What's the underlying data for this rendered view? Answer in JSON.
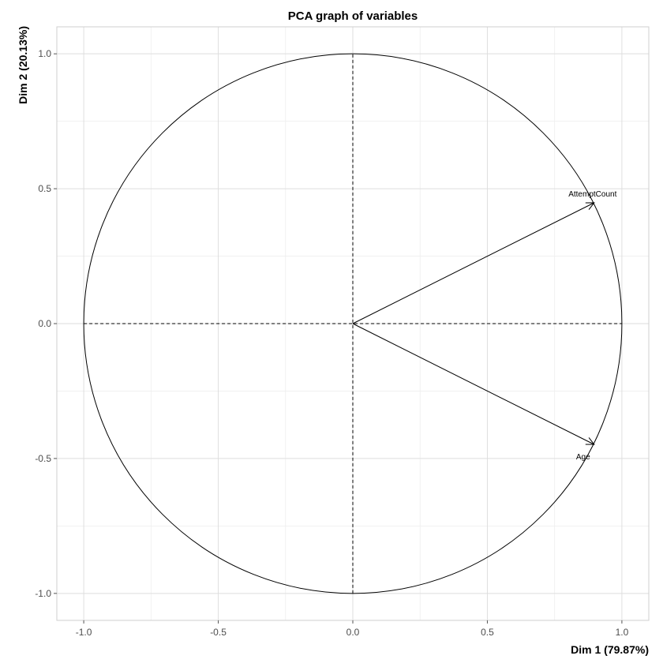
{
  "chart_data": {
    "type": "scatter",
    "title": "PCA graph of variables",
    "xlabel": "Dim 1 (79.87%)",
    "ylabel": "Dim 2 (20.13%)",
    "xlim": [
      -1.1,
      1.1
    ],
    "ylim": [
      -1.1,
      1.1
    ],
    "xticks": [
      -1.0,
      -0.5,
      0.0,
      0.5,
      1.0
    ],
    "yticks": [
      -1.0,
      -0.5,
      0.0,
      0.5,
      1.0
    ],
    "xtick_labels": [
      "-1.0",
      "-0.5",
      "0.0",
      "0.5",
      "1.0"
    ],
    "ytick_labels": [
      "-1.0",
      "-0.5",
      "0.0",
      "0.5",
      "1.0"
    ],
    "grid": true,
    "unit_circle": true,
    "variables": [
      {
        "name": "AttemptCount",
        "x": 0.897,
        "y": 0.448
      },
      {
        "name": "Age",
        "x": 0.897,
        "y": -0.448
      }
    ]
  }
}
